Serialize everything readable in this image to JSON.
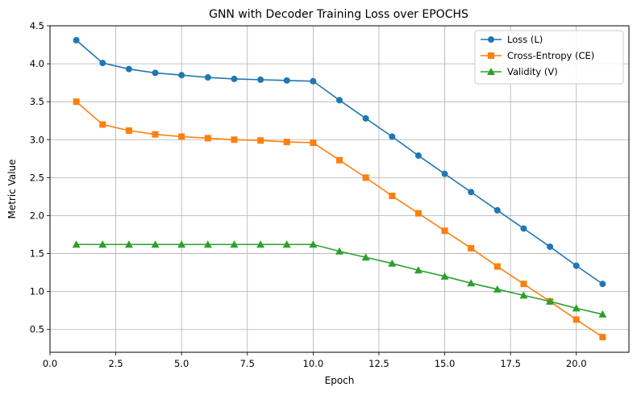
{
  "chart_data": {
    "type": "line",
    "title": "GNN with Decoder Training Loss over EPOCHS",
    "xlabel": "Epoch",
    "ylabel": "Metric Value",
    "xlim": [
      0,
      22.0
    ],
    "ylim": [
      0.2,
      4.5
    ],
    "xticks": [
      0.0,
      2.5,
      5.0,
      7.5,
      10.0,
      12.5,
      15.0,
      17.5,
      20.0
    ],
    "xtick_labels": [
      "0.0",
      "2.5",
      "5.0",
      "7.5",
      "10.0",
      "12.5",
      "15.0",
      "17.5",
      "20.0"
    ],
    "yticks": [
      0.5,
      1.0,
      1.5,
      2.0,
      2.5,
      3.0,
      3.5,
      4.0,
      4.5
    ],
    "ytick_labels": [
      "0.5",
      "1.0",
      "1.5",
      "2.0",
      "2.5",
      "3.0",
      "3.5",
      "4.0",
      "4.5"
    ],
    "grid": true,
    "legend_position": "top-right",
    "x": [
      1,
      2,
      3,
      4,
      5,
      6,
      7,
      8,
      9,
      10,
      11,
      12,
      13,
      14,
      15,
      16,
      17,
      18,
      19,
      20,
      21
    ],
    "series": [
      {
        "name": "Loss (L)",
        "color": "#1f77b4",
        "marker": "circle",
        "values": [
          4.31,
          4.01,
          3.93,
          3.88,
          3.85,
          3.82,
          3.8,
          3.79,
          3.78,
          3.77,
          3.52,
          3.28,
          3.04,
          2.79,
          2.55,
          2.31,
          2.07,
          1.83,
          1.59,
          1.34,
          1.1
        ]
      },
      {
        "name": "Cross-Entropy (CE)",
        "color": "#ff7f0e",
        "marker": "square",
        "values": [
          3.5,
          3.2,
          3.12,
          3.07,
          3.04,
          3.02,
          3.0,
          2.99,
          2.97,
          2.96,
          2.73,
          2.5,
          2.26,
          2.03,
          1.8,
          1.57,
          1.33,
          1.1,
          0.87,
          0.63,
          0.4
        ]
      },
      {
        "name": "Validity (V)",
        "color": "#2ca02c",
        "marker": "triangle",
        "values": [
          1.62,
          1.62,
          1.62,
          1.62,
          1.62,
          1.62,
          1.62,
          1.62,
          1.62,
          1.62,
          1.53,
          1.45,
          1.37,
          1.28,
          1.2,
          1.11,
          1.03,
          0.95,
          0.87,
          0.78,
          0.7
        ]
      }
    ]
  }
}
